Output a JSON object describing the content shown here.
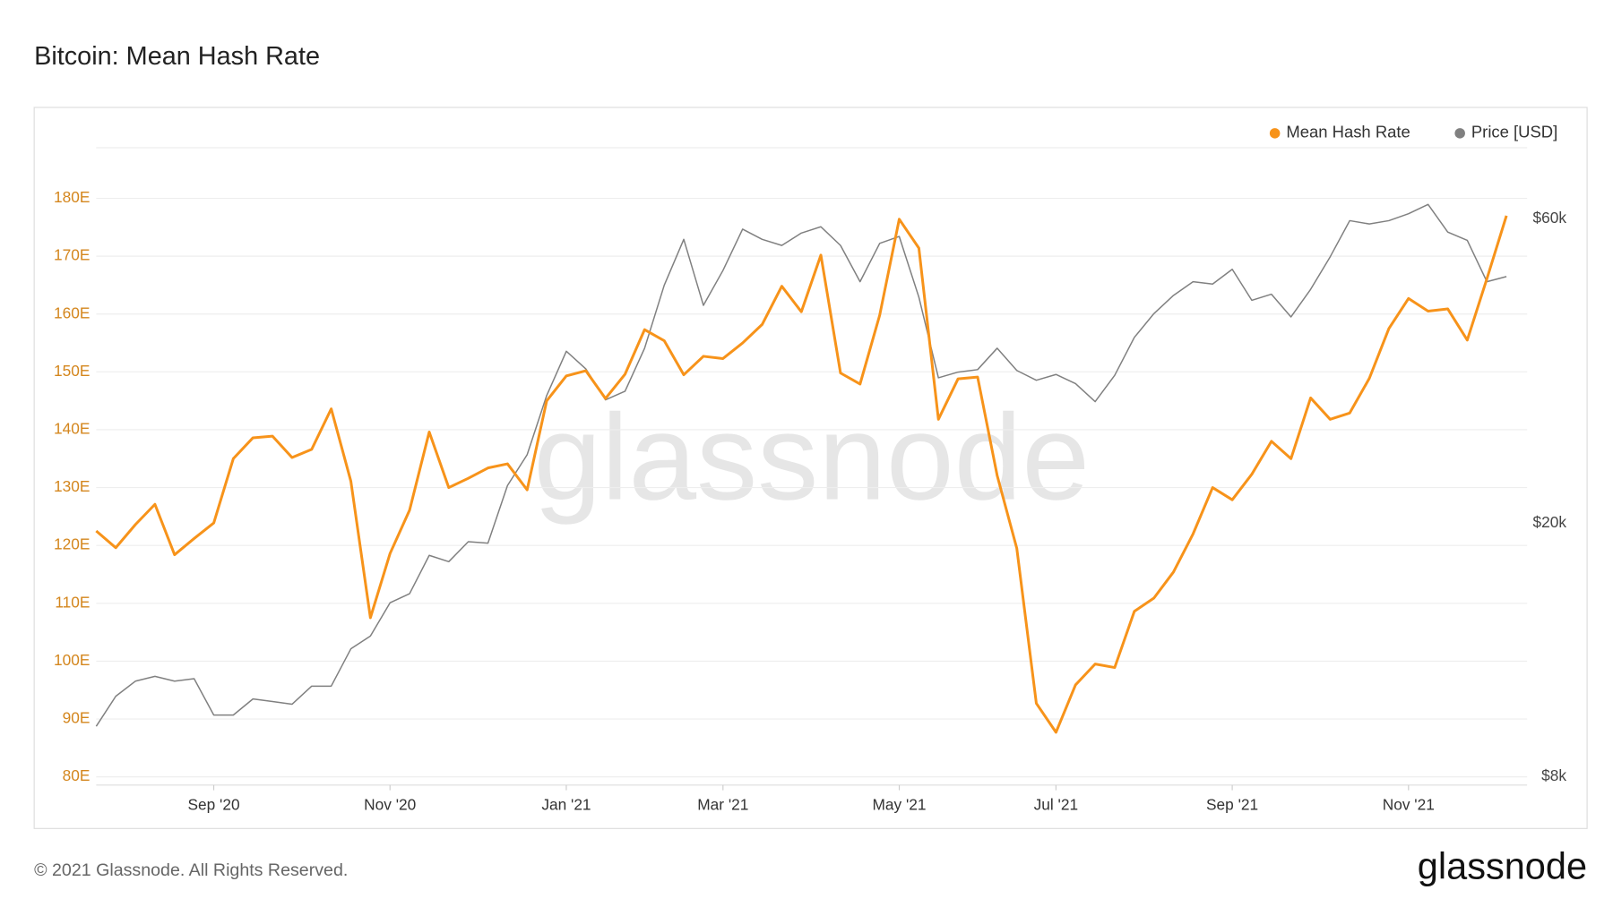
{
  "chart_data": {
    "type": "line",
    "title": "Bitcoin: Mean Hash Rate",
    "watermark": "glassnode",
    "footer": "© 2021 Glassnode. All Rights Reserved.",
    "logo": "glassnode",
    "legend": "top-right",
    "grid": true,
    "categories": [
      null,
      null,
      null,
      null,
      null,
      null,
      "Sep '20",
      null,
      null,
      null,
      null,
      null,
      null,
      null,
      null,
      "Nov '20",
      null,
      null,
      null,
      null,
      null,
      null,
      null,
      null,
      "Jan '21",
      null,
      null,
      null,
      null,
      null,
      null,
      null,
      "Mar '21",
      null,
      null,
      null,
      null,
      null,
      null,
      null,
      null,
      "May '21",
      null,
      null,
      null,
      null,
      null,
      null,
      null,
      "Jul '21",
      null,
      null,
      null,
      null,
      null,
      null,
      null,
      null,
      "Sep '21",
      null,
      null,
      null,
      null,
      null,
      null,
      null,
      null,
      "Nov '21",
      null,
      null,
      null,
      null,
      null
    ],
    "ylim": [
      80,
      180
    ],
    "yticks": [
      {
        "value": 80,
        "label": "80E"
      },
      {
        "value": 90,
        "label": "90E"
      },
      {
        "value": 100,
        "label": "100E"
      },
      {
        "value": 110,
        "label": "110E"
      },
      {
        "value": 120,
        "label": "120E"
      },
      {
        "value": 130,
        "label": "130E"
      },
      {
        "value": 140,
        "label": "140E"
      },
      {
        "value": 150,
        "label": "150E"
      },
      {
        "value": 160,
        "label": "160E"
      },
      {
        "value": 170,
        "label": "170E"
      },
      {
        "value": 180,
        "label": "180E"
      }
    ],
    "y2lim": [
      8000,
      64600
    ],
    "y2log": true,
    "y2ticks": [
      {
        "value": 8000,
        "label": "$8k"
      },
      {
        "value": 20000,
        "label": "$20k"
      },
      {
        "value": 60000,
        "label": "$60k"
      }
    ],
    "series": [
      {
        "name": "Mean Hash Rate",
        "color": "#f7931a",
        "axis": "y",
        "values": [
          122.5,
          119.6,
          123.6,
          127.1,
          118.4,
          121.2,
          123.9,
          135,
          138.6,
          138.9,
          135.2,
          136.6,
          143.6,
          131.1,
          107.5,
          118.6,
          126.1,
          139.6,
          130,
          131.6,
          133.4,
          134.1,
          129.6,
          145,
          149.3,
          150.2,
          145.4,
          149.6,
          157.3,
          155.4,
          149.5,
          152.7,
          152.3,
          155,
          158.2,
          164.8,
          160.4,
          170.2,
          149.8,
          147.9,
          159.8,
          176.4,
          171.4,
          141.8,
          148.8,
          149.1,
          132.1,
          119.5,
          92.7,
          87.7,
          95.9,
          99.5,
          98.9,
          108.6,
          110.9,
          115.4,
          122,
          130,
          127.9,
          132.3,
          138,
          135,
          145.5,
          141.8,
          142.9,
          148.9,
          157.5,
          162.7,
          160.5,
          160.9,
          155.5,
          166.1,
          177
        ]
      },
      {
        "name": "Price [USD]",
        "color": "#808080",
        "axis": "y2",
        "values": [
          9600,
          10700,
          11300,
          11500,
          11300,
          11400,
          10000,
          10000,
          10600,
          10500,
          10400,
          11100,
          11100,
          12700,
          13300,
          15000,
          15500,
          17800,
          17400,
          18700,
          18600,
          22900,
          25600,
          31700,
          37200,
          34900,
          31200,
          32200,
          37600,
          47200,
          55700,
          43900,
          49800,
          57800,
          55700,
          54500,
          57000,
          58300,
          54500,
          47800,
          54900,
          56300,
          45200,
          33800,
          34500,
          34800,
          37600,
          34700,
          33500,
          34200,
          33100,
          31000,
          34100,
          39100,
          42600,
          45500,
          47800,
          47400,
          50000,
          44700,
          45700,
          42100,
          46500,
          52300,
          59600,
          58900,
          59600,
          61100,
          63200,
          57200,
          55500,
          47800,
          48700
        ]
      }
    ]
  }
}
